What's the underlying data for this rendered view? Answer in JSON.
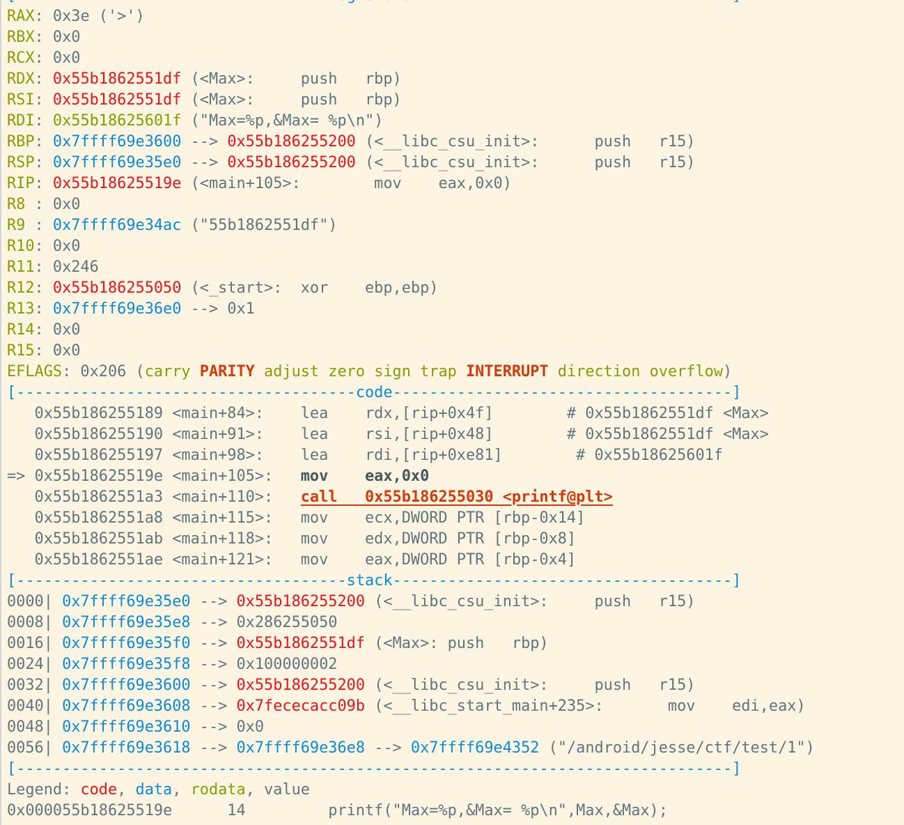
{
  "colors": {
    "background": "#fdf5e1",
    "value": "#5f7580",
    "rodata": "#8a9a00",
    "code": "#e8141e",
    "data": "#0b8ad6",
    "flag_set": "#d23c0c"
  },
  "lines": [
    [
      [
        "[----------------------------------",
        "b"
      ],
      [
        "registers",
        "b"
      ],
      [
        "-----------------------------------]",
        "b"
      ]
    ],
    [
      [
        "RAX",
        "o"
      ],
      [
        ": 0x3e ('>')",
        "g"
      ]
    ],
    [
      [
        "RBX",
        "o"
      ],
      [
        ": 0x0",
        "g"
      ]
    ],
    [
      [
        "RCX",
        "o"
      ],
      [
        ": 0x0",
        "g"
      ]
    ],
    [
      [
        "RDX",
        "o"
      ],
      [
        ": ",
        "g"
      ],
      [
        "0x55b1862551df",
        "r"
      ],
      [
        " (<Max>:     push   rbp)",
        "g"
      ]
    ],
    [
      [
        "RSI",
        "o"
      ],
      [
        ": ",
        "g"
      ],
      [
        "0x55b1862551df",
        "r"
      ],
      [
        " (<Max>:     push   rbp)",
        "g"
      ]
    ],
    [
      [
        "RDI",
        "o"
      ],
      [
        ": ",
        "g"
      ],
      [
        "0x55b18625601f",
        "o"
      ],
      [
        " (\"Max=%p,&Max= %p\\n\")",
        "g"
      ]
    ],
    [
      [
        "RBP",
        "o"
      ],
      [
        ": ",
        "g"
      ],
      [
        "0x7ffff69e3600",
        "b"
      ],
      [
        " --> ",
        "g"
      ],
      [
        "0x55b186255200",
        "r"
      ],
      [
        " (<__libc_csu_init>:      push   r15)",
        "g"
      ]
    ],
    [
      [
        "RSP",
        "o"
      ],
      [
        ": ",
        "g"
      ],
      [
        "0x7ffff69e35e0",
        "b"
      ],
      [
        " --> ",
        "g"
      ],
      [
        "0x55b186255200",
        "r"
      ],
      [
        " (<__libc_csu_init>:      push   r15)",
        "g"
      ]
    ],
    [
      [
        "RIP",
        "o"
      ],
      [
        ": ",
        "g"
      ],
      [
        "0x55b18625519e",
        "r"
      ],
      [
        " (<main+105>:        mov    eax,0x0)",
        "g"
      ]
    ],
    [
      [
        "R8 ",
        "o"
      ],
      [
        ": 0x0",
        "g"
      ]
    ],
    [
      [
        "R9 ",
        "o"
      ],
      [
        ": ",
        "g"
      ],
      [
        "0x7ffff69e34ac",
        "b"
      ],
      [
        " (\"55b1862551df\")",
        "g"
      ]
    ],
    [
      [
        "R10",
        "o"
      ],
      [
        ": 0x0",
        "g"
      ]
    ],
    [
      [
        "R11",
        "o"
      ],
      [
        ": 0x246",
        "g"
      ]
    ],
    [
      [
        "R12",
        "o"
      ],
      [
        ": ",
        "g"
      ],
      [
        "0x55b186255050",
        "r"
      ],
      [
        " (<_start>:  xor    ebp,ebp)",
        "g"
      ]
    ],
    [
      [
        "R13",
        "o"
      ],
      [
        ": ",
        "g"
      ],
      [
        "0x7ffff69e36e0",
        "b"
      ],
      [
        " --> 0x1",
        "g"
      ]
    ],
    [
      [
        "R14",
        "o"
      ],
      [
        ": 0x0",
        "g"
      ]
    ],
    [
      [
        "R15",
        "o"
      ],
      [
        ": 0x0",
        "g"
      ]
    ],
    [
      [
        "EFLAGS",
        "o"
      ],
      [
        ": 0x206 (",
        "g"
      ],
      [
        "carry ",
        "o"
      ],
      [
        "PARITY",
        "or"
      ],
      [
        " adjust zero sign trap ",
        "o"
      ],
      [
        "INTERRUPT",
        "or"
      ],
      [
        " direction overflow",
        "o"
      ],
      [
        ")",
        "g"
      ]
    ],
    [
      [
        "[-------------------------------------",
        "b"
      ],
      [
        "code",
        "b"
      ],
      [
        "-------------------------------------]",
        "b"
      ]
    ],
    [
      [
        "   0x55b186255189 <main+84>:    lea    rdx,[rip+0x4f]        # 0x55b1862551df <Max>",
        "g"
      ]
    ],
    [
      [
        "   0x55b186255190 <main+91>:    lea    rsi,[rip+0x48]        # 0x55b1862551df <Max>",
        "g"
      ]
    ],
    [
      [
        "   0x55b186255197 <main+98>:    lea    rdi,[rip+0xe81]        # 0x55b18625601f",
        "g"
      ]
    ],
    [
      [
        "=> 0x55b18625519e <main+105>:   ",
        "g"
      ],
      [
        "mov    eax,0x0",
        "k"
      ]
    ],
    [
      [
        "   0x55b1862551a3 <main+110>:   ",
        "g"
      ],
      [
        "call   0x55b186255030 <printf@plt>",
        "u"
      ]
    ],
    [
      [
        "   0x55b1862551a8 <main+115>:   mov    ecx,DWORD PTR [rbp-0x14]",
        "g"
      ]
    ],
    [
      [
        "   0x55b1862551ab <main+118>:   mov    edx,DWORD PTR [rbp-0x8]",
        "g"
      ]
    ],
    [
      [
        "   0x55b1862551ae <main+121>:   mov    eax,DWORD PTR [rbp-0x4]",
        "g"
      ]
    ],
    [
      [
        "[------------------------------------",
        "b"
      ],
      [
        "stack",
        "b"
      ],
      [
        "-------------------------------------]",
        "b"
      ]
    ],
    [
      [
        "0000| ",
        "g"
      ],
      [
        "0x7ffff69e35e0",
        "b"
      ],
      [
        " --> ",
        "g"
      ],
      [
        "0x55b186255200",
        "r"
      ],
      [
        " (<__libc_csu_init>:     push   r15)",
        "g"
      ]
    ],
    [
      [
        "0008| ",
        "g"
      ],
      [
        "0x7ffff69e35e8",
        "b"
      ],
      [
        " --> 0x286255050",
        "g"
      ]
    ],
    [
      [
        "0016| ",
        "g"
      ],
      [
        "0x7ffff69e35f0",
        "b"
      ],
      [
        " --> ",
        "g"
      ],
      [
        "0x55b1862551df",
        "r"
      ],
      [
        " (<Max>: push   rbp)",
        "g"
      ]
    ],
    [
      [
        "0024| ",
        "g"
      ],
      [
        "0x7ffff69e35f8",
        "b"
      ],
      [
        " --> 0x100000002",
        "g"
      ]
    ],
    [
      [
        "0032| ",
        "g"
      ],
      [
        "0x7ffff69e3600",
        "b"
      ],
      [
        " --> ",
        "g"
      ],
      [
        "0x55b186255200",
        "r"
      ],
      [
        " (<__libc_csu_init>:     push   r15)",
        "g"
      ]
    ],
    [
      [
        "0040| ",
        "g"
      ],
      [
        "0x7ffff69e3608",
        "b"
      ],
      [
        " --> ",
        "g"
      ],
      [
        "0x7fececacc09b",
        "r"
      ],
      [
        " (<__libc_start_main+235>:       mov    edi,eax)",
        "g"
      ]
    ],
    [
      [
        "0048| ",
        "g"
      ],
      [
        "0x7ffff69e3610",
        "b"
      ],
      [
        " --> 0x0",
        "g"
      ]
    ],
    [
      [
        "0056| ",
        "g"
      ],
      [
        "0x7ffff69e3618",
        "b"
      ],
      [
        " --> ",
        "g"
      ],
      [
        "0x7ffff69e36e8",
        "b"
      ],
      [
        " --> ",
        "g"
      ],
      [
        "0x7ffff69e4352",
        "b"
      ],
      [
        " (\"/android/jesse/ctf/test/1\")",
        "g"
      ]
    ],
    [
      [
        "[------------------------------------------------------------------------------]",
        "b"
      ]
    ],
    [
      [
        "Legend: ",
        "g"
      ],
      [
        "code",
        "r"
      ],
      [
        ", ",
        "g"
      ],
      [
        "data",
        "b"
      ],
      [
        ", ",
        "g"
      ],
      [
        "rodata",
        "o"
      ],
      [
        ", value",
        "g"
      ]
    ],
    [
      [
        "0x000055b18625519e      14         printf(\"Max=%p,&Max= %p\\n\",Max,&Max);",
        "g"
      ]
    ]
  ]
}
